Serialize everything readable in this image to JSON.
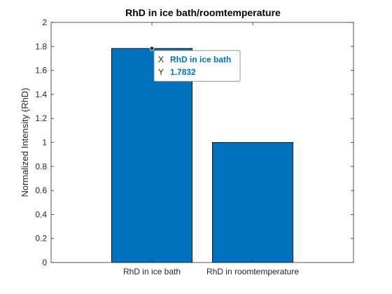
{
  "chart_data": {
    "type": "bar",
    "title": "RhD in ice bath/roomtemperature",
    "xlabel": "",
    "ylabel": "Normalized Intensity (RhD)",
    "categories": [
      "RhD in ice bath",
      "RhD in roomtemperature"
    ],
    "values": [
      1.7832,
      1.0
    ],
    "ylim": [
      0,
      2
    ],
    "yticks": [
      "0",
      "0.2",
      "0.4",
      "0.6",
      "0.8",
      "1",
      "1.2",
      "1.4",
      "1.6",
      "1.8",
      "2"
    ],
    "grid": false,
    "bar_color": "#0072BD",
    "datatip": {
      "x_key": "X",
      "x_value": "RhD in ice bath",
      "y_key": "Y",
      "y_value": "1.7832",
      "value_color": "#0072BD"
    }
  }
}
